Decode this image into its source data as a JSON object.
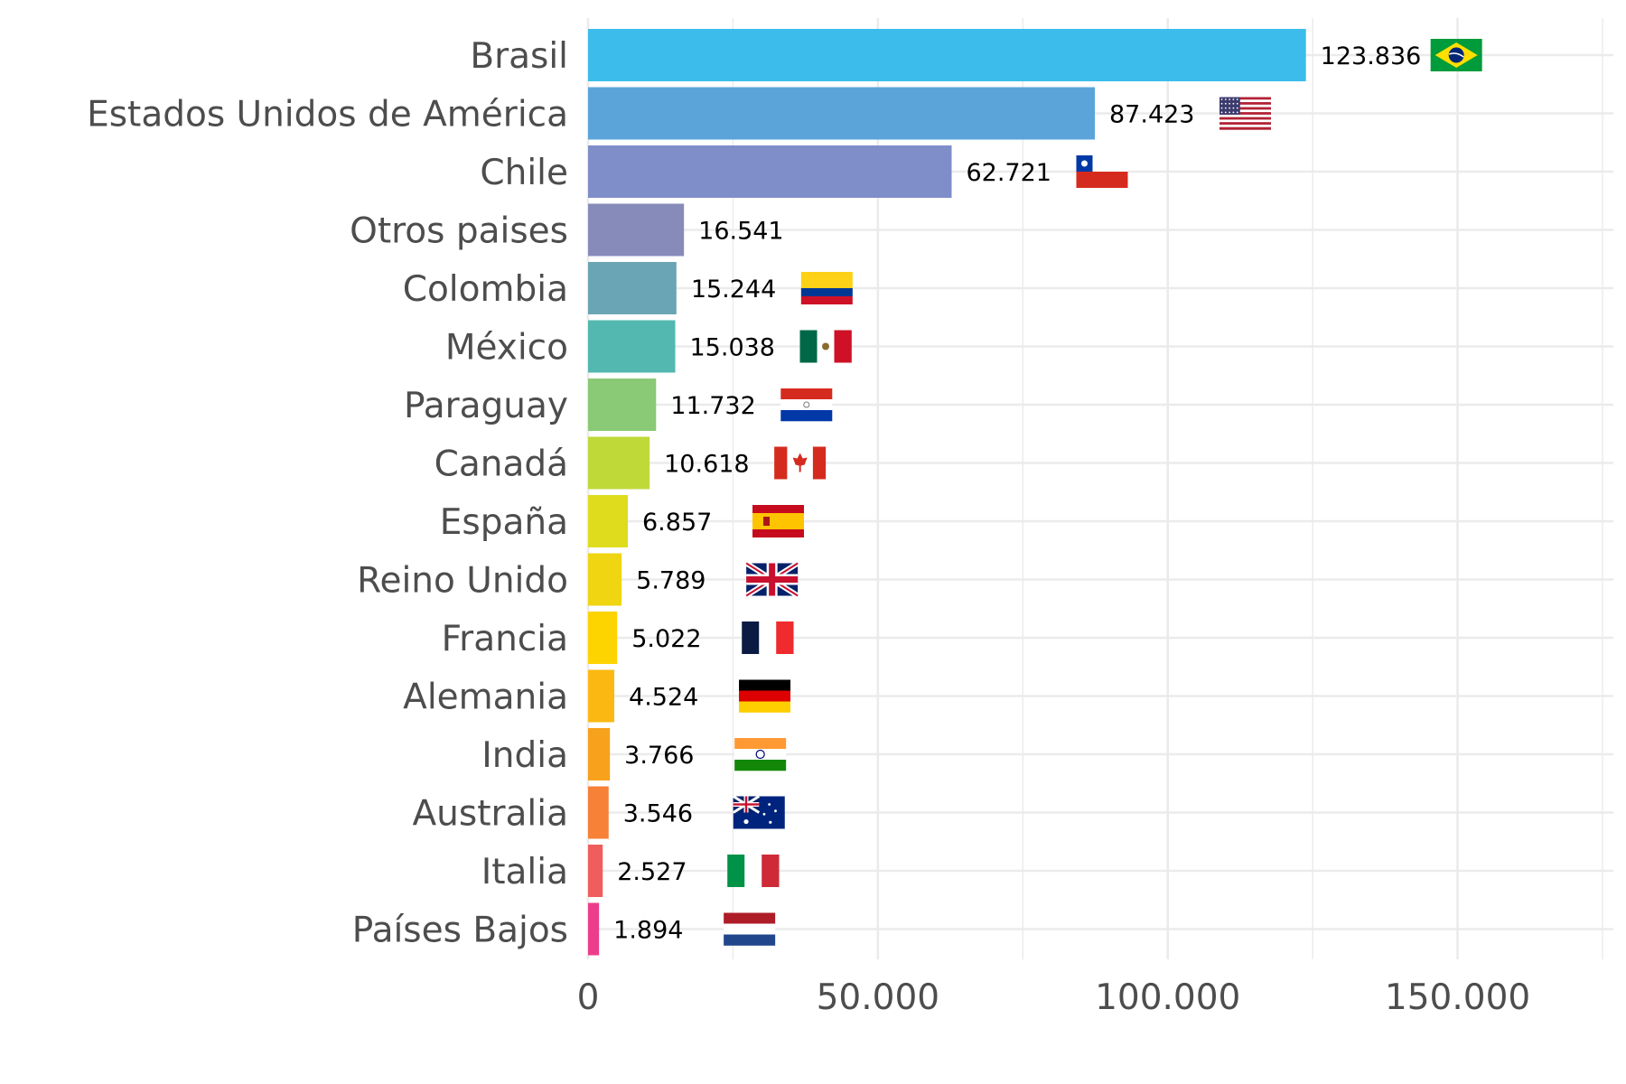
{
  "chart_data": {
    "type": "bar",
    "orientation": "horizontal",
    "title": "",
    "xlabel": "",
    "ylabel": "",
    "xlim": [
      0,
      175000
    ],
    "grid": true,
    "legend": "none",
    "x_ticks": [
      {
        "value": 0,
        "label": "0"
      },
      {
        "value": 50000,
        "label": "50.000"
      },
      {
        "value": 100000,
        "label": "100.000"
      },
      {
        "value": 150000,
        "label": "150.000"
      }
    ],
    "categories": [
      "Brasil",
      "Estados Unidos de América",
      "Chile",
      "Otros paises",
      "Colombia",
      "México",
      "Paraguay",
      "Canadá",
      "España",
      "Reino Unido",
      "Francia",
      "Alemania",
      "India",
      "Australia",
      "Italia",
      "Países Bajos"
    ],
    "values": [
      123836,
      87423,
      62721,
      16541,
      15244,
      15038,
      11732,
      10618,
      6857,
      5789,
      5022,
      4524,
      3766,
      3546,
      2527,
      1894
    ],
    "value_labels": [
      "123.836",
      "87.423",
      "62.721",
      "16.541",
      "15.244",
      "15.038",
      "11.732",
      "10.618",
      "6.857",
      "5.789",
      "5.022",
      "4.524",
      "3.766",
      "3.546",
      "2.527",
      "1.894"
    ],
    "bar_colors": [
      "#3bbceb",
      "#5ba4da",
      "#7f8ec9",
      "#878bba",
      "#6aa5b5",
      "#52b8b0",
      "#8ac975",
      "#bfd939",
      "#dedc1d",
      "#efd512",
      "#fdd400",
      "#fbb813",
      "#f8a11d",
      "#f68137",
      "#ef5d5d",
      "#ec3d8a"
    ],
    "flags": [
      "brazil",
      "usa",
      "chile",
      null,
      "colombia",
      "mexico",
      "paraguay",
      "canada",
      "spain",
      "uk",
      "france",
      "germany",
      "india",
      "australia",
      "italy",
      "netherlands"
    ]
  }
}
